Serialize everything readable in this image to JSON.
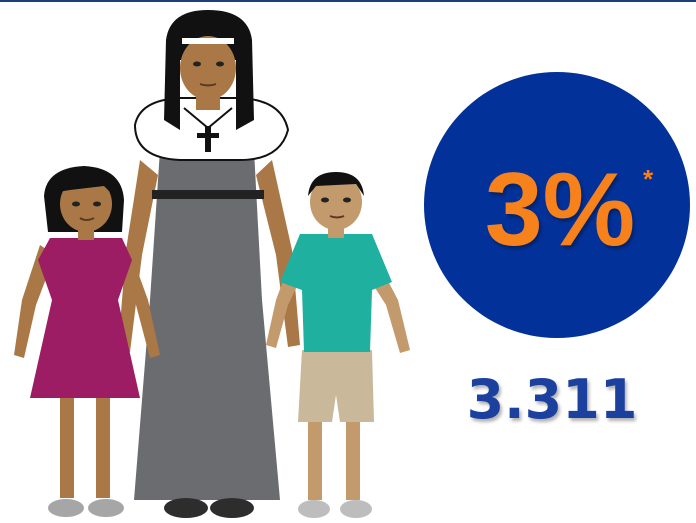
{
  "stat": {
    "percent": "3%",
    "footnote_mark": "*",
    "count": "3.311"
  }
}
